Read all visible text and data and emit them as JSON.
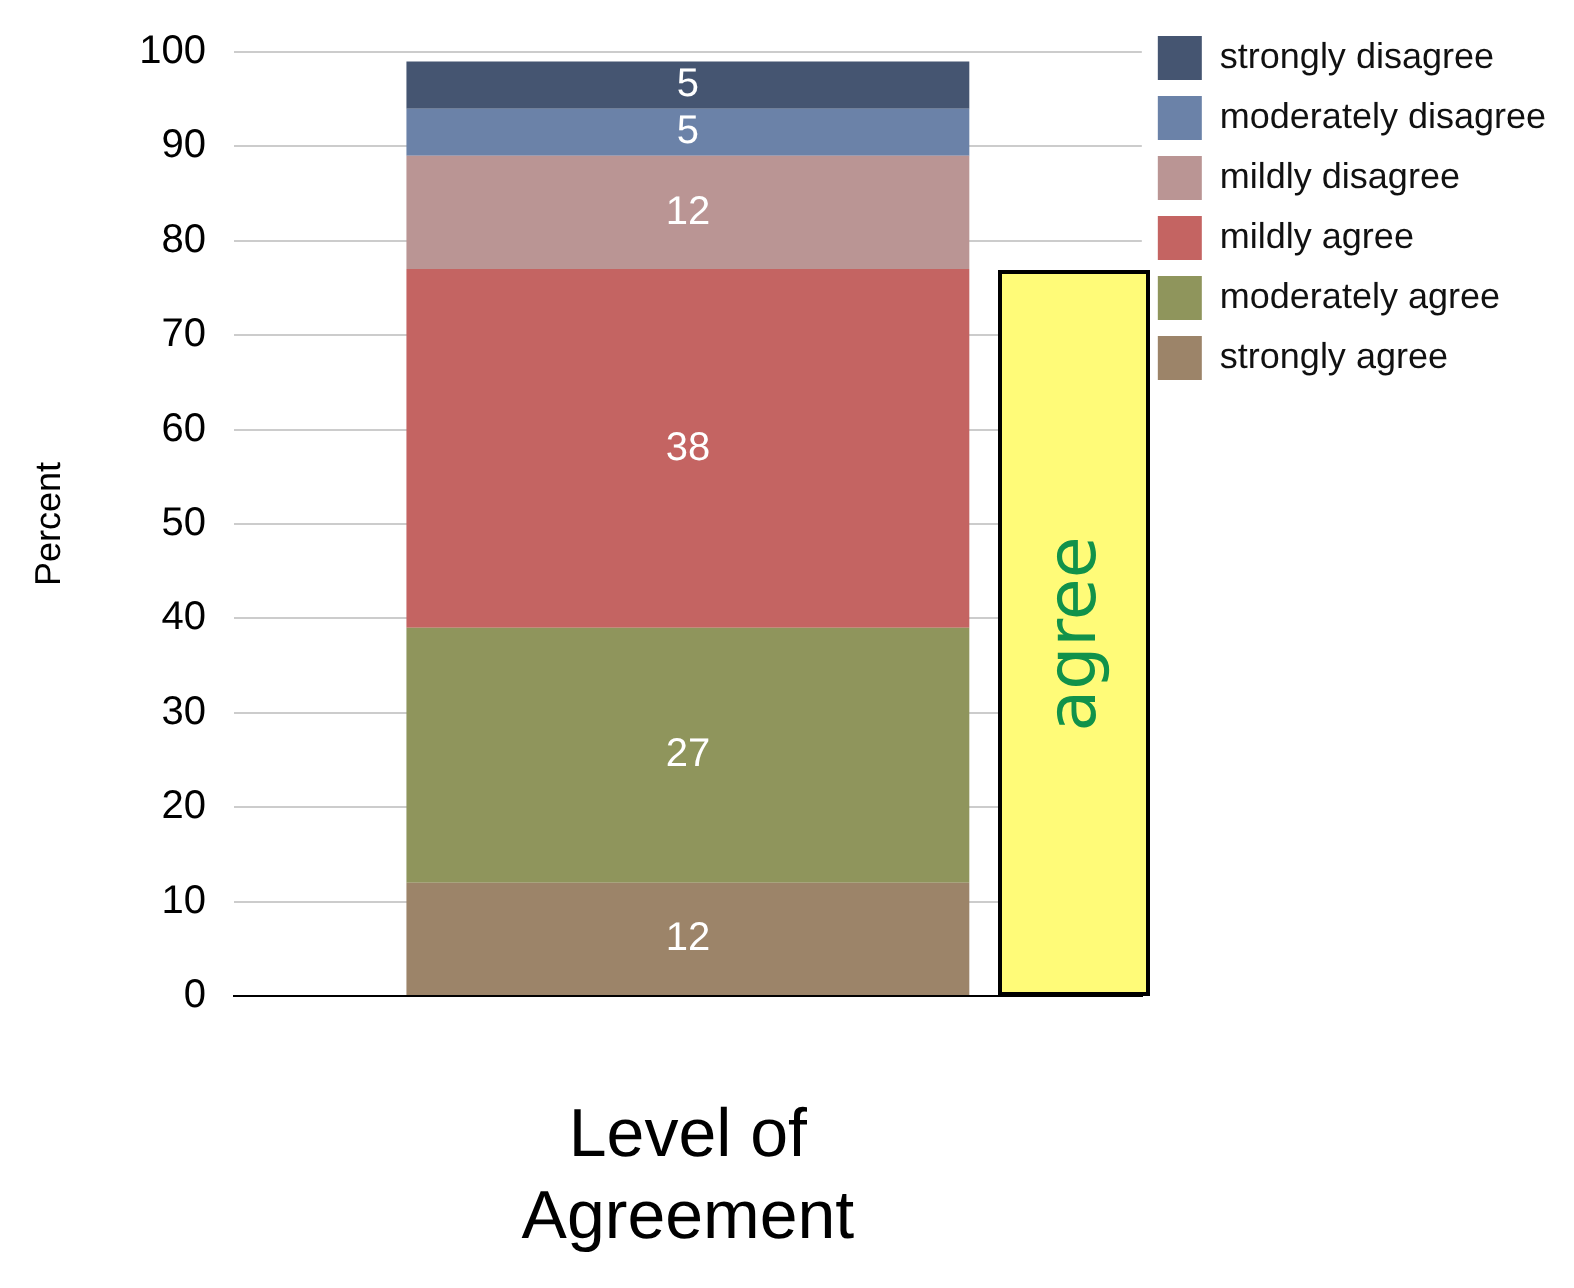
{
  "chart_data": {
    "type": "bar",
    "stacked": true,
    "categories": [
      null
    ],
    "xlabel": "Level of Agreement",
    "ylabel": "Percent",
    "series": [
      {
        "name": "strongly agree",
        "color": "#9c8469",
        "values": [
          12
        ]
      },
      {
        "name": "moderately agree",
        "color": "#8f955c",
        "values": [
          27
        ]
      },
      {
        "name": "mildly agree",
        "color": "#c46462",
        "values": [
          38
        ]
      },
      {
        "name": "mildly disagree",
        "color": "#ba9594",
        "values": [
          12
        ]
      },
      {
        "name": "moderately disagree",
        "color": "#6b82a8",
        "values": [
          5
        ]
      },
      {
        "name": "strongly disagree",
        "color": "#455571",
        "values": [
          5
        ]
      }
    ],
    "ylim": [
      0,
      100
    ],
    "yticks": [
      0,
      10,
      20,
      30,
      40,
      50,
      60,
      70,
      80,
      90,
      100
    ],
    "grid": "y",
    "legend": "top right",
    "data_labels": true,
    "annotations": [
      "agree"
    ]
  }
}
